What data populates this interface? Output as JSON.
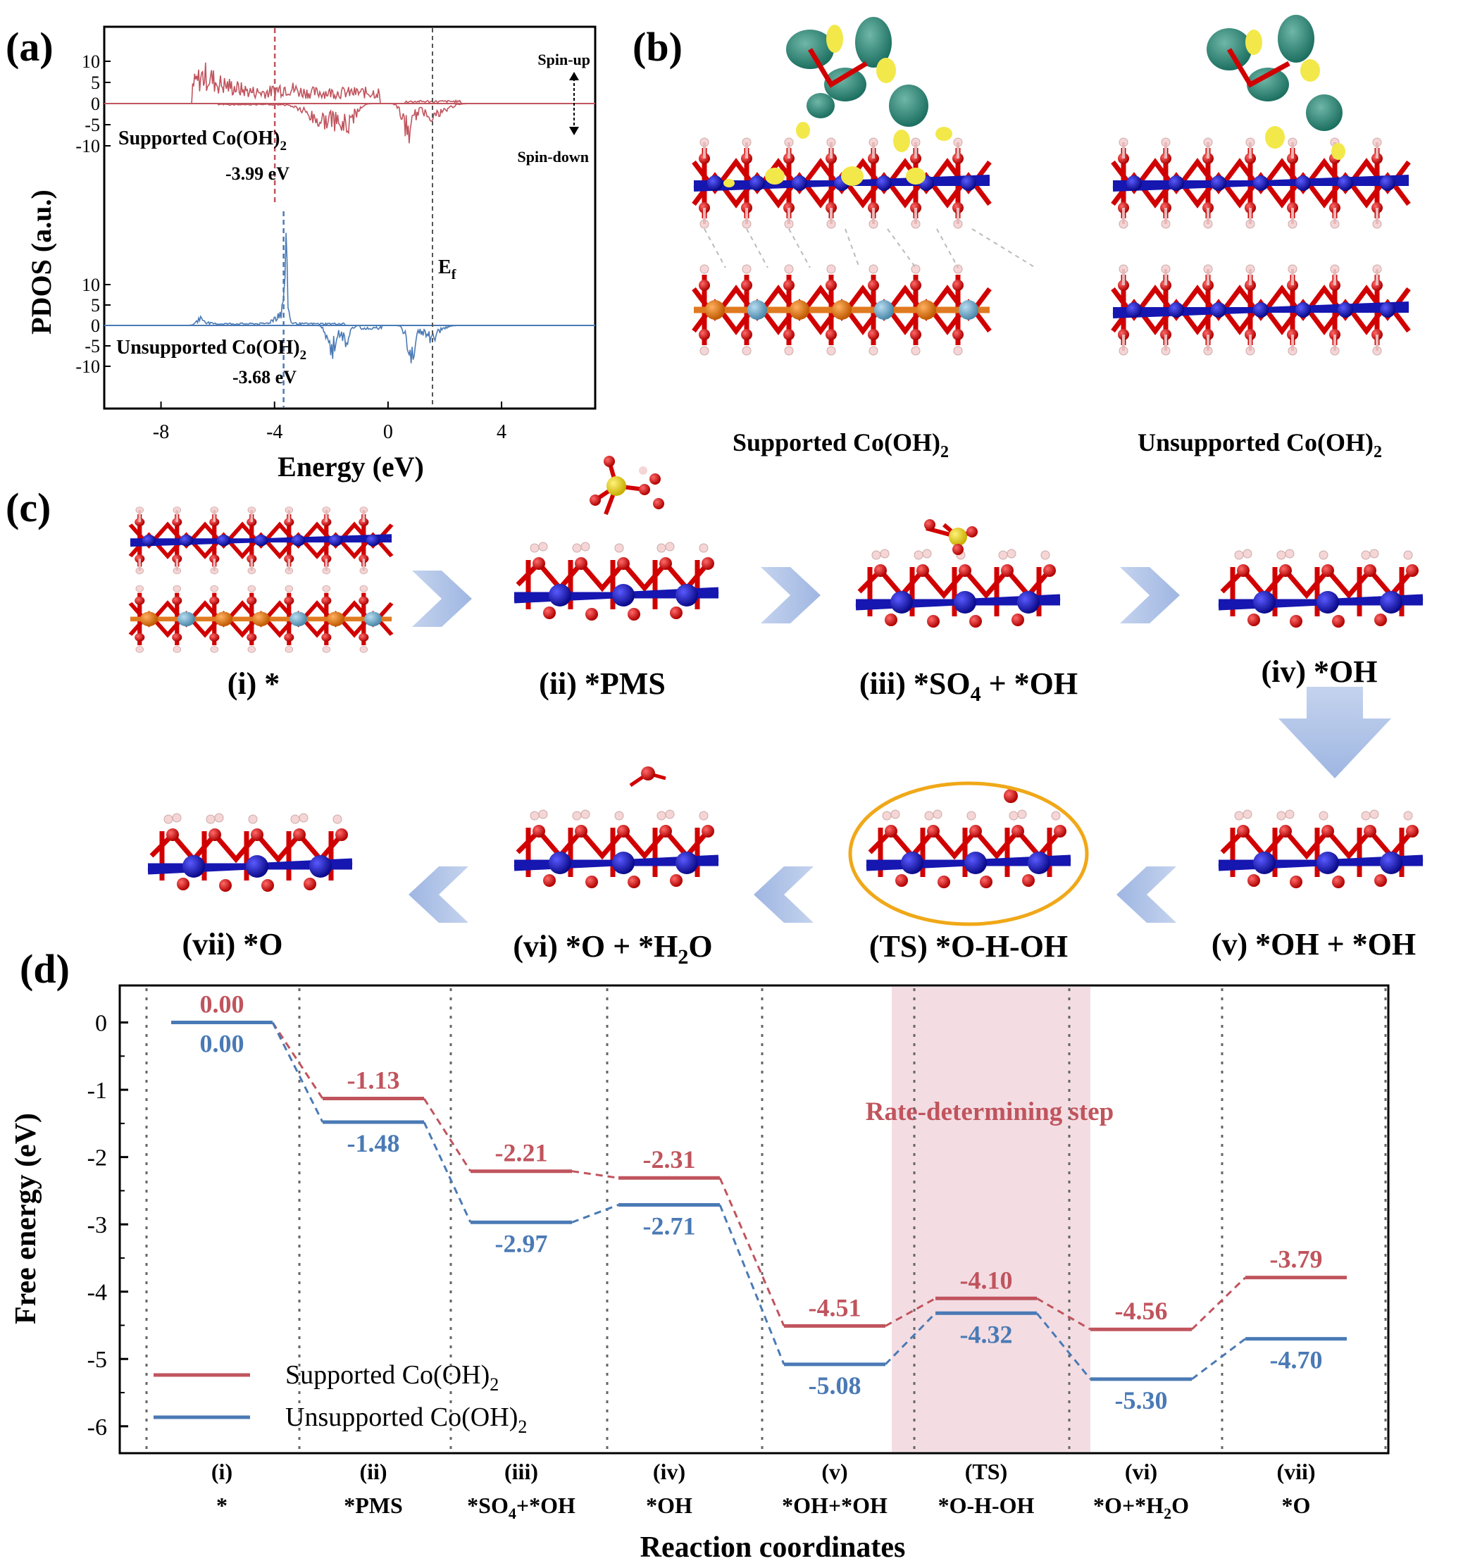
{
  "panels": {
    "a": {
      "letter": "(a)",
      "ylabel": "PDOS (a.u.)",
      "xlabel": "Energy (eV)",
      "xticks": [
        "-8",
        "-4",
        "0",
        "4"
      ],
      "top_yticks": [
        "10",
        "5",
        "0",
        "-5",
        "-10"
      ],
      "bottom_yticks": [
        "10",
        "5",
        "0",
        "-5",
        "-10"
      ],
      "spin_up": "Spin-up",
      "spin_down": "Spin-down",
      "ef": "E",
      "ef_sub": "f",
      "supported_label": "Supported Co(OH)",
      "supported_center": "-3.99 eV",
      "unsupported_label": "Unsupported Co(OH)",
      "unsupported_center": "-3.68 eV",
      "sub2": "2",
      "colors": {
        "supported": "#c0545d",
        "unsupported": "#4a7ab5"
      },
      "band_centers": {
        "supported": -3.99,
        "unsupported": -3.68
      }
    },
    "b": {
      "letter": "(b)",
      "left_label": "Supported Co(OH)",
      "right_label": "Unsupported Co(OH)",
      "sub2": "2"
    },
    "c": {
      "letter": "(c)",
      "steps": [
        {
          "label": "(i) *"
        },
        {
          "label": "(ii) *PMS"
        },
        {
          "label_a": "(iii) *SO",
          "sub": "4",
          "label_b": " + *OH"
        },
        {
          "label": "(iv) *OH"
        },
        {
          "label": "(v) *OH + *OH"
        },
        {
          "label": "(TS) *O-H-OH"
        },
        {
          "label_a": "(vi) *O + *H",
          "sub": "2",
          "label_b": "O"
        },
        {
          "label": "(vii) *O"
        }
      ]
    }
  },
  "chart_data": {
    "type": "line",
    "panel_letter": "(d)",
    "xlabel": "Reaction coordinates",
    "ylabel": "Free energy (eV)",
    "ylim": [
      -6.4,
      0.55
    ],
    "yticks": [
      0,
      -1,
      -2,
      -3,
      -4,
      -5,
      -6
    ],
    "annotation": "Rate-determining step",
    "categories": [
      {
        "top": "(i)",
        "bottom": "*"
      },
      {
        "top": "(ii)",
        "bottom": "*PMS"
      },
      {
        "top": "(iii)",
        "bottom_a": "*SO",
        "sub": "4",
        "bottom_b": "+*OH"
      },
      {
        "top": "(iv)",
        "bottom": "*OH"
      },
      {
        "top": "(v)",
        "bottom": "*OH+*OH"
      },
      {
        "top": "(TS)",
        "bottom": "*O-H-OH"
      },
      {
        "top": "(vi)",
        "bottom_a": "*O+*H",
        "sub": "2",
        "bottom_b": "O"
      },
      {
        "top": "(vii)",
        "bottom": "*O"
      }
    ],
    "series": [
      {
        "name_a": "Supported Co(OH)",
        "name_sub": "2",
        "color": "#c0545d",
        "values": [
          0.0,
          -1.13,
          -2.21,
          -2.31,
          -4.51,
          -4.1,
          -4.56,
          -3.79
        ],
        "labels": [
          "0.00",
          "-1.13",
          "-2.21",
          "-2.31",
          "-4.51",
          "-4.10",
          "-4.56",
          "-3.79"
        ]
      },
      {
        "name_a": "Unsupported Co(OH)",
        "name_sub": "2",
        "color": "#4a7ab5",
        "values": [
          0.0,
          -1.48,
          -2.97,
          -2.71,
          -5.08,
          -4.32,
          -5.3,
          -4.7
        ],
        "labels": [
          "0.00",
          "-1.48",
          "-2.97",
          "-2.71",
          "-5.08",
          "-4.32",
          "-5.30",
          "-4.70"
        ]
      }
    ],
    "highlight_color": "#f3dde3"
  }
}
